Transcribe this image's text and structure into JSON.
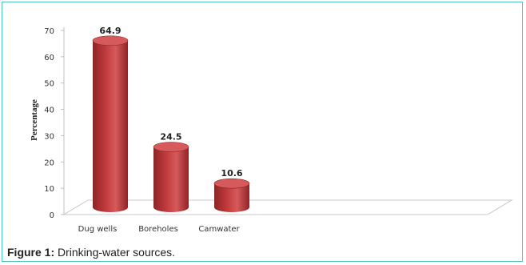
{
  "chart_data": {
    "type": "bar",
    "style": "3d-cylinder",
    "categories": [
      "Dug wells",
      "Boreholes",
      "Camwater"
    ],
    "values": [
      64.9,
      24.5,
      10.6
    ],
    "data_labels": [
      "64.9",
      "24.5",
      "10.6"
    ],
    "ylabel": "Percentage",
    "xlabel": "",
    "ylim": [
      0,
      70
    ],
    "yticks": [
      0,
      10,
      20,
      30,
      40,
      50,
      60,
      70
    ],
    "grid": false,
    "legend": "none",
    "bar_color": "#c0393b",
    "bar_top_color": "#d65a5b",
    "bar_dark_color": "#8e2426"
  },
  "caption": {
    "label": "Figure 1:",
    "text": "Drinking-water sources."
  },
  "frame_color": "#4fc3c0"
}
